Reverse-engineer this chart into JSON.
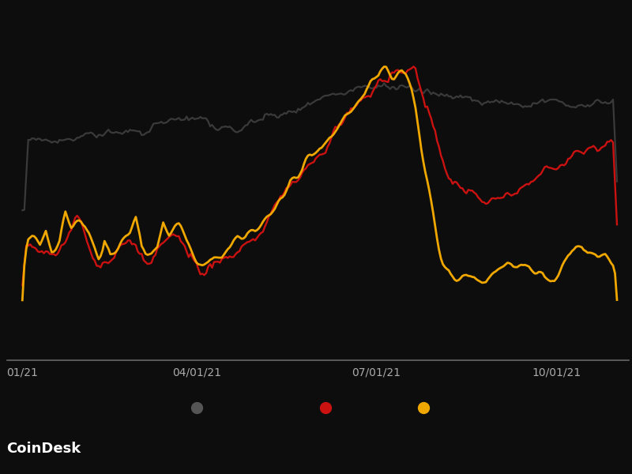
{
  "background_color": "#0d0d0d",
  "line_colors": {
    "bitcoin": "#3a3a3a",
    "cardano": "#cc1111",
    "algorand": "#f0a800"
  },
  "line_widths": {
    "bitcoin": 1.6,
    "cardano": 1.7,
    "algorand": 2.0
  },
  "x_tick_labels": [
    "01/21",
    "04/01/21",
    "07/01/21",
    "10/01/21"
  ],
  "x_tick_positions": [
    0,
    89,
    181,
    273
  ],
  "legend_colors": [
    "#555555",
    "#cc1111",
    "#f0a800"
  ],
  "legend_marker_size": 10,
  "coindesk_text": "CoinDesk",
  "coindesk_fontsize": 13,
  "n_points": 305
}
